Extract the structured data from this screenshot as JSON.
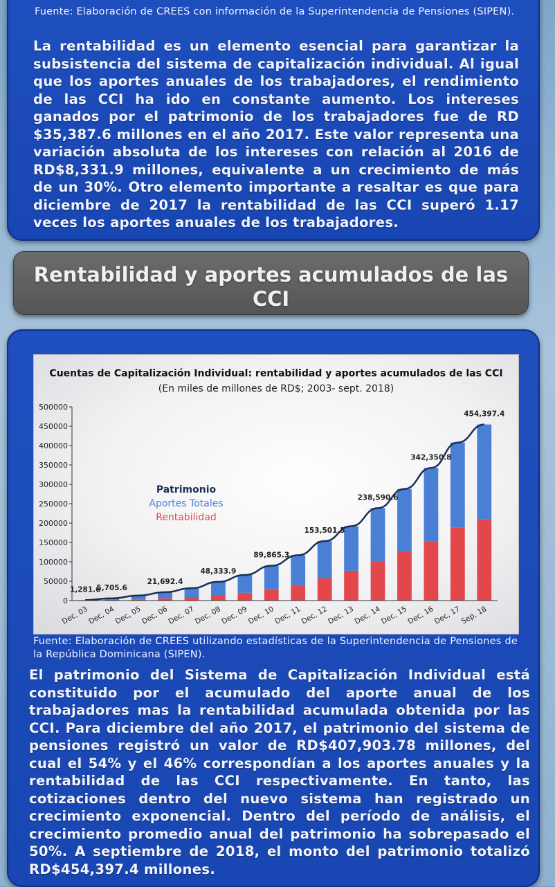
{
  "top_section": {
    "source": "Fuente: Elaboración de CREES con información de la Superintendencia de Pensiones (SIPEN).",
    "paragraph": "La rentabilidad es un elemento esencial para garantizar la subsistencia del sistema de capitalización individual. Al igual que los aportes anuales de los trabajadores, el rendimiento de las CCI ha ido en constante aumento. Los intereses ganados por el patrimonio de los trabajadores fue de RD $35,387.6 millones en el año 2017. Este valor representa una variación absoluta de los intereses con relación al 2016 de RD$8,331.9 millones, equivalente a un crecimiento de más de un 30%. Otro elemento importante a resaltar es que para diciembre de 2017 la rentabilidad de las CCI superó 1.17 veces los aportes anuales de los trabajadores."
  },
  "section_header": {
    "title": "Rentabilidad y aportes acumulados de las CCI"
  },
  "bottom_section": {
    "source": "Fuente: Elaboración de CREES utilizando estadísticas de la Superintendencia de Pensiones de la República Dominicana (SIPEN).",
    "paragraph": "El patrimonio del Sistema de Capitalización Individual está constituido por el acumulado del aporte anual de los trabajadores mas la rentabilidad acumulada obtenida por las CCI. Para diciembre del año 2017, el patrimonio del sistema de pensiones registró un valor de RD$407,903.78 millones, del cual el 54% y el 46% correspondían a los aportes anuales y la rentabilidad de las CCI respectivamente. En tanto, las cotizaciones dentro del nuevo sistema han registrado un crecimiento exponencial. Dentro del período de análisis, el crecimiento promedio anual del patrimonio ha sobrepasado el 50%. A septiembre de 2018, el monto del patrimonio totalizó RD$454,397.4 millones."
  },
  "colors": {
    "aportes": "#4a7fd6",
    "rentabilidad": "#e2474b",
    "patrimonio": "#1b2f55"
  },
  "chart_data": {
    "type": "bar",
    "stacked": true,
    "title": "Cuentas de Capitalización Individual: rentabilidad y aportes acumulados de las CCI",
    "subtitle": "(En miles de millones de RD$; 2003- sept. 2018)",
    "categories": [
      "Dec, 03",
      "Dec, 04",
      "Dec, 05",
      "Dec, 06",
      "Dec, 07",
      "Dec, 08",
      "Dec, 09",
      "Dec, 10",
      "Dec, 11",
      "Dec, 12",
      "Dec, 13",
      "Dec, 14",
      "Dec, 15",
      "Dec, 16",
      "Dec, 17",
      "Sep, 18"
    ],
    "series": [
      {
        "name": "Aportes Totales",
        "values": [
          1200,
          5100,
          11000,
          16000,
          23000,
          35000,
          46000,
          60000,
          77000,
          96000,
          115000,
          137000,
          163000,
          189000,
          220000,
          245000
        ]
      },
      {
        "name": "Rentabilidad",
        "values": [
          80,
          600,
          2000,
          5700,
          9000,
          13300,
          20000,
          29865,
          40000,
          57501,
          77000,
          101591,
          125000,
          153351,
          187904,
          209397
        ]
      }
    ],
    "line": {
      "name": "Patrimonio",
      "values": [
        1281.6,
        5705.6,
        13000,
        21692.4,
        32000,
        48333.9,
        66000,
        89865.3,
        117000,
        153501.5,
        192000,
        238590.6,
        288000,
        342350.8,
        407903.78,
        454397.4
      ]
    },
    "data_labels": [
      "1,281.6",
      "5,705.6",
      "",
      "21,692.4",
      "",
      "48,333.9",
      "",
      "89,865.3",
      "",
      "153,501.5",
      "",
      "238,590.6",
      "",
      "342,350.8",
      "",
      "454,397.4"
    ],
    "ylim": [
      0,
      500000
    ],
    "yticks": [
      "0",
      "50000",
      "100000",
      "150000",
      "200000",
      "250000",
      "300000",
      "350000",
      "400000",
      "450000",
      "500000"
    ],
    "legend": [
      "Patrimonio",
      "Aportes Totales",
      "Rentabilidad"
    ],
    "legend_position": "top-left",
    "grid": false
  }
}
